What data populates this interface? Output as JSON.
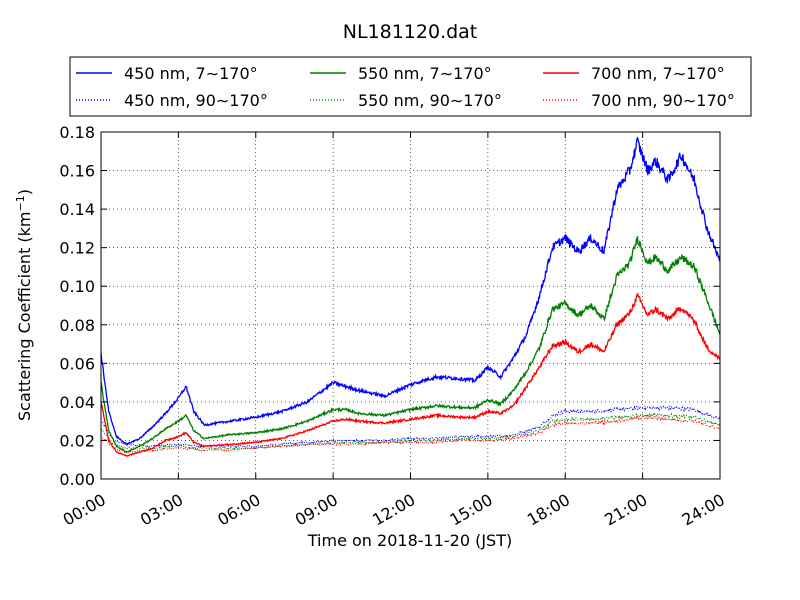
{
  "chart_data": {
    "type": "line",
    "title": "NL181120.dat",
    "xlabel": "Time on 2018-11-20 (JST)",
    "ylabel": "Scattering Coefficient (km",
    "ylabel_sup": "−1",
    "ylabel_close": ")",
    "xlim": [
      0,
      24
    ],
    "ylim": [
      0,
      0.18
    ],
    "grid": true,
    "legend_position": "top",
    "x_ticks": [
      0,
      3,
      6,
      9,
      12,
      15,
      18,
      21,
      24
    ],
    "x_tick_labels": [
      "00:00",
      "03:00",
      "06:00",
      "09:00",
      "12:00",
      "15:00",
      "18:00",
      "21:00",
      "24:00"
    ],
    "y_ticks": [
      0,
      0.02,
      0.04,
      0.06,
      0.08,
      0.1,
      0.12,
      0.14,
      0.16,
      0.18
    ],
    "y_tick_labels": [
      "0.00",
      "0.02",
      "0.04",
      "0.06",
      "0.08",
      "0.10",
      "0.12",
      "0.14",
      "0.16",
      "0.18"
    ],
    "series": [
      {
        "name": "450 nm, 7∼170°",
        "color": "#0000ff",
        "style": "solid",
        "points": [
          [
            0,
            0.065
          ],
          [
            0.3,
            0.035
          ],
          [
            0.6,
            0.022
          ],
          [
            1,
            0.018
          ],
          [
            1.5,
            0.021
          ],
          [
            2,
            0.027
          ],
          [
            2.5,
            0.034
          ],
          [
            3,
            0.042
          ],
          [
            3.3,
            0.048
          ],
          [
            3.6,
            0.035
          ],
          [
            4,
            0.028
          ],
          [
            5,
            0.03
          ],
          [
            6,
            0.032
          ],
          [
            7,
            0.035
          ],
          [
            8,
            0.04
          ],
          [
            9,
            0.05
          ],
          [
            9.5,
            0.048
          ],
          [
            10,
            0.046
          ],
          [
            11,
            0.043
          ],
          [
            12,
            0.049
          ],
          [
            13,
            0.053
          ],
          [
            14,
            0.052
          ],
          [
            14.5,
            0.051
          ],
          [
            15,
            0.058
          ],
          [
            15.5,
            0.053
          ],
          [
            16,
            0.063
          ],
          [
            16.5,
            0.075
          ],
          [
            17,
            0.095
          ],
          [
            17.5,
            0.12
          ],
          [
            18,
            0.125
          ],
          [
            18.5,
            0.118
          ],
          [
            19,
            0.125
          ],
          [
            19.5,
            0.118
          ],
          [
            20,
            0.15
          ],
          [
            20.5,
            0.16
          ],
          [
            20.8,
            0.175
          ],
          [
            21.2,
            0.16
          ],
          [
            21.5,
            0.165
          ],
          [
            22,
            0.155
          ],
          [
            22.5,
            0.168
          ],
          [
            23,
            0.155
          ],
          [
            23.5,
            0.13
          ],
          [
            24,
            0.113
          ]
        ]
      },
      {
        "name": "550 nm, 7∼170°",
        "color": "#008000",
        "style": "solid",
        "points": [
          [
            0,
            0.05
          ],
          [
            0.3,
            0.025
          ],
          [
            0.6,
            0.017
          ],
          [
            1,
            0.014
          ],
          [
            1.5,
            0.017
          ],
          [
            2,
            0.021
          ],
          [
            2.5,
            0.026
          ],
          [
            3,
            0.03
          ],
          [
            3.3,
            0.033
          ],
          [
            3.6,
            0.025
          ],
          [
            4,
            0.021
          ],
          [
            5,
            0.023
          ],
          [
            6,
            0.024
          ],
          [
            7,
            0.026
          ],
          [
            8,
            0.03
          ],
          [
            9,
            0.036
          ],
          [
            9.5,
            0.036
          ],
          [
            10,
            0.034
          ],
          [
            11,
            0.033
          ],
          [
            12,
            0.036
          ],
          [
            13,
            0.038
          ],
          [
            14,
            0.037
          ],
          [
            14.5,
            0.037
          ],
          [
            15,
            0.041
          ],
          [
            15.5,
            0.039
          ],
          [
            16,
            0.046
          ],
          [
            16.5,
            0.056
          ],
          [
            17,
            0.068
          ],
          [
            17.5,
            0.088
          ],
          [
            18,
            0.091
          ],
          [
            18.5,
            0.085
          ],
          [
            19,
            0.09
          ],
          [
            19.5,
            0.083
          ],
          [
            20,
            0.105
          ],
          [
            20.5,
            0.112
          ],
          [
            20.8,
            0.125
          ],
          [
            21.2,
            0.112
          ],
          [
            21.5,
            0.115
          ],
          [
            22,
            0.108
          ],
          [
            22.5,
            0.115
          ],
          [
            23,
            0.11
          ],
          [
            23.5,
            0.093
          ],
          [
            24,
            0.075
          ]
        ]
      },
      {
        "name": "700 nm, 7∼170°",
        "color": "#ff0000",
        "style": "solid",
        "points": [
          [
            0,
            0.04
          ],
          [
            0.3,
            0.02
          ],
          [
            0.6,
            0.014
          ],
          [
            1,
            0.012
          ],
          [
            1.5,
            0.014
          ],
          [
            2,
            0.016
          ],
          [
            2.5,
            0.02
          ],
          [
            3,
            0.022
          ],
          [
            3.3,
            0.024
          ],
          [
            3.6,
            0.019
          ],
          [
            4,
            0.017
          ],
          [
            5,
            0.018
          ],
          [
            6,
            0.019
          ],
          [
            7,
            0.021
          ],
          [
            8,
            0.025
          ],
          [
            9,
            0.03
          ],
          [
            9.5,
            0.031
          ],
          [
            10,
            0.03
          ],
          [
            11,
            0.029
          ],
          [
            12,
            0.031
          ],
          [
            13,
            0.033
          ],
          [
            14,
            0.032
          ],
          [
            14.5,
            0.032
          ],
          [
            15,
            0.035
          ],
          [
            15.5,
            0.034
          ],
          [
            16,
            0.038
          ],
          [
            16.5,
            0.048
          ],
          [
            17,
            0.058
          ],
          [
            17.5,
            0.069
          ],
          [
            18,
            0.071
          ],
          [
            18.5,
            0.066
          ],
          [
            19,
            0.07
          ],
          [
            19.5,
            0.066
          ],
          [
            20,
            0.08
          ],
          [
            20.5,
            0.086
          ],
          [
            20.8,
            0.095
          ],
          [
            21.2,
            0.085
          ],
          [
            21.5,
            0.088
          ],
          [
            22,
            0.083
          ],
          [
            22.5,
            0.089
          ],
          [
            23,
            0.082
          ],
          [
            23.5,
            0.068
          ],
          [
            24,
            0.062
          ]
        ]
      },
      {
        "name": "450 nm, 90∼170°",
        "color": "#0000ff",
        "style": "dotted",
        "points": [
          [
            0,
            0.03
          ],
          [
            0.5,
            0.02
          ],
          [
            1,
            0.018
          ],
          [
            2,
            0.017
          ],
          [
            3,
            0.018
          ],
          [
            4,
            0.017
          ],
          [
            5,
            0.017
          ],
          [
            6,
            0.017
          ],
          [
            7,
            0.018
          ],
          [
            8,
            0.019
          ],
          [
            9,
            0.02
          ],
          [
            10,
            0.02
          ],
          [
            11,
            0.02
          ],
          [
            12,
            0.021
          ],
          [
            13,
            0.021
          ],
          [
            14,
            0.022
          ],
          [
            15,
            0.022
          ],
          [
            16,
            0.023
          ],
          [
            17,
            0.027
          ],
          [
            17.5,
            0.033
          ],
          [
            18,
            0.035
          ],
          [
            19,
            0.035
          ],
          [
            20,
            0.036
          ],
          [
            21,
            0.037
          ],
          [
            22,
            0.037
          ],
          [
            23,
            0.036
          ],
          [
            24,
            0.031
          ]
        ]
      },
      {
        "name": "550 nm, 90∼170°",
        "color": "#008000",
        "style": "dotted",
        "points": [
          [
            0,
            0.026
          ],
          [
            0.5,
            0.018
          ],
          [
            1,
            0.016
          ],
          [
            2,
            0.016
          ],
          [
            3,
            0.017
          ],
          [
            4,
            0.016
          ],
          [
            5,
            0.016
          ],
          [
            6,
            0.016
          ],
          [
            7,
            0.017
          ],
          [
            8,
            0.018
          ],
          [
            9,
            0.019
          ],
          [
            10,
            0.019
          ],
          [
            11,
            0.019
          ],
          [
            12,
            0.02
          ],
          [
            13,
            0.02
          ],
          [
            14,
            0.021
          ],
          [
            15,
            0.021
          ],
          [
            16,
            0.022
          ],
          [
            17,
            0.025
          ],
          [
            17.5,
            0.03
          ],
          [
            18,
            0.031
          ],
          [
            19,
            0.031
          ],
          [
            20,
            0.032
          ],
          [
            21,
            0.033
          ],
          [
            22,
            0.033
          ],
          [
            23,
            0.032
          ],
          [
            24,
            0.028
          ]
        ]
      },
      {
        "name": "700 nm, 90∼170°",
        "color": "#ff0000",
        "style": "dotted",
        "points": [
          [
            0,
            0.022
          ],
          [
            0.5,
            0.016
          ],
          [
            1,
            0.014
          ],
          [
            2,
            0.015
          ],
          [
            3,
            0.016
          ],
          [
            4,
            0.015
          ],
          [
            5,
            0.015
          ],
          [
            6,
            0.016
          ],
          [
            7,
            0.017
          ],
          [
            8,
            0.018
          ],
          [
            9,
            0.018
          ],
          [
            10,
            0.018
          ],
          [
            11,
            0.019
          ],
          [
            12,
            0.019
          ],
          [
            13,
            0.019
          ],
          [
            14,
            0.02
          ],
          [
            15,
            0.02
          ],
          [
            16,
            0.021
          ],
          [
            17,
            0.024
          ],
          [
            17.5,
            0.028
          ],
          [
            18,
            0.029
          ],
          [
            19,
            0.029
          ],
          [
            20,
            0.03
          ],
          [
            21,
            0.032
          ],
          [
            22,
            0.031
          ],
          [
            23,
            0.03
          ],
          [
            24,
            0.026
          ]
        ]
      }
    ]
  }
}
